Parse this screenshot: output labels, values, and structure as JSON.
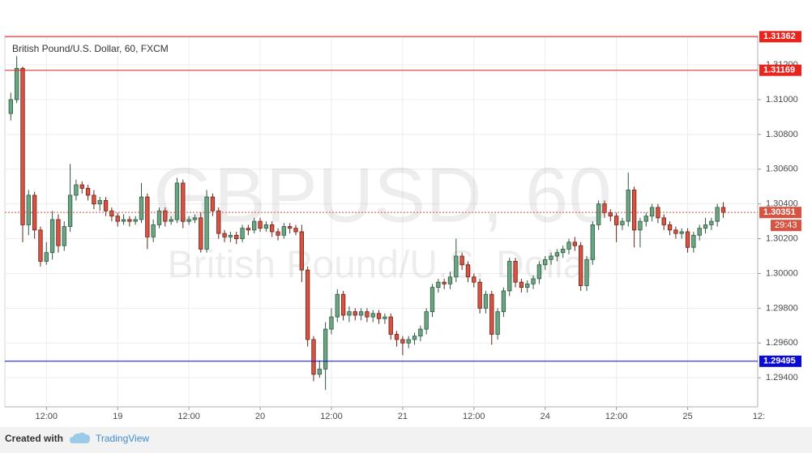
{
  "chart_data": {
    "type": "candlestick",
    "title": "British Pound/U.S. Dollar, 60, FXCM",
    "watermark": "GBPUSD, 60",
    "watermark_subtitle": "British Pound/U.S. Dollar",
    "open": [
      1.3092,
      1.31,
      1.3118,
      1.3028,
      1.3045,
      1.3025,
      1.3007,
      1.3012,
      1.3031,
      1.3016,
      1.3027,
      1.3045,
      1.3051,
      1.3049,
      1.3045,
      1.304,
      1.3042,
      1.3036,
      1.3033,
      1.303,
      1.3031,
      1.303,
      1.3031,
      1.3044,
      1.3021,
      1.3028,
      1.3036,
      1.303,
      1.3031,
      1.3052,
      1.303,
      1.3031,
      1.3032,
      1.3014,
      1.3044,
      1.3036,
      1.3023,
      1.3021,
      1.3022,
      1.302,
      1.3026,
      1.3025,
      1.303,
      1.3026,
      1.3028,
      1.3024,
      1.3022,
      1.3027,
      1.3026,
      1.3024,
      1.3002,
      1.2962,
      1.2942,
      1.2945,
      1.2968,
      1.2975,
      1.2988,
      1.2976,
      1.2978,
      1.2976,
      1.2978,
      1.2975,
      1.2977,
      1.2974,
      1.2975,
      1.2965,
      1.2962,
      1.296,
      1.2962,
      1.2964,
      1.2968,
      1.2978,
      1.2992,
      1.2995,
      1.2994,
      1.2998,
      1.301,
      1.3005,
      1.2998,
      1.2995,
      1.298,
      1.2988,
      1.2965,
      1.2978,
      1.299,
      1.3007,
      1.2995,
      1.2992,
      1.2994,
      1.2997,
      1.3005,
      1.3008,
      1.301,
      1.3012,
      1.3014,
      1.3018,
      1.3016,
      1.2993,
      1.3008,
      1.3028,
      1.304,
      1.3035,
      1.3033,
      1.3028,
      1.303,
      1.3048,
      1.3025,
      1.303,
      1.3033,
      1.3038,
      1.3032,
      1.3028,
      1.3025,
      1.3023,
      1.3024,
      1.3015,
      1.3022,
      1.3026,
      1.3028,
      1.303,
      1.3038
    ],
    "high": [
      1.3104,
      1.3125,
      1.3119,
      1.3048,
      1.3047,
      1.3027,
      1.3018,
      1.3036,
      1.3034,
      1.303,
      1.3063,
      1.3054,
      1.3053,
      1.3051,
      1.3048,
      1.3044,
      1.3044,
      1.3038,
      1.3035,
      1.3034,
      1.3033,
      1.3033,
      1.3052,
      1.3046,
      1.3031,
      1.3038,
      1.3038,
      1.3033,
      1.3055,
      1.3054,
      1.3033,
      1.3034,
      1.3035,
      1.3048,
      1.3046,
      1.3038,
      1.3025,
      1.3024,
      1.3024,
      1.3028,
      1.3028,
      1.3032,
      1.3032,
      1.303,
      1.303,
      1.3026,
      1.3029,
      1.3029,
      1.3028,
      1.3028,
      1.3004,
      1.2964,
      1.295,
      1.2972,
      1.298,
      1.2991,
      1.299,
      1.2981,
      1.298,
      1.298,
      1.298,
      1.2979,
      1.2979,
      1.2977,
      1.2977,
      1.2967,
      1.2964,
      1.2964,
      1.2966,
      1.297,
      1.298,
      1.2994,
      1.2997,
      1.2997,
      1.3001,
      1.302,
      1.3012,
      1.3007,
      1.3,
      1.2997,
      1.299,
      1.299,
      1.298,
      1.2992,
      1.3009,
      1.3009,
      1.2997,
      1.2996,
      1.2999,
      1.3007,
      1.301,
      1.3012,
      1.3014,
      1.3016,
      1.302,
      1.3021,
      1.3018,
      1.301,
      1.303,
      1.3042,
      1.3042,
      1.3037,
      1.3035,
      1.3032,
      1.3058,
      1.305,
      1.3032,
      1.3035,
      1.304,
      1.304,
      1.3034,
      1.303,
      1.3027,
      1.3026,
      1.3026,
      1.3024,
      1.3028,
      1.3032,
      1.3032,
      1.304,
      1.3041
    ],
    "low": [
      1.3088,
      1.3098,
      1.3018,
      1.3022,
      1.302,
      1.3004,
      1.3005,
      1.3008,
      1.3012,
      1.3013,
      1.3024,
      1.3042,
      1.3046,
      1.3042,
      1.3037,
      1.3036,
      1.3033,
      1.303,
      1.3027,
      1.3028,
      1.3027,
      1.3028,
      1.3029,
      1.3014,
      1.3018,
      1.3026,
      1.3027,
      1.3028,
      1.3029,
      1.3026,
      1.3028,
      1.3029,
      1.3012,
      1.3012,
      1.3033,
      1.302,
      1.3018,
      1.3018,
      1.3017,
      1.3018,
      1.3022,
      1.3023,
      1.3024,
      1.3024,
      1.3021,
      1.3019,
      1.302,
      1.3023,
      1.3022,
      1.2995,
      1.2958,
      1.2938,
      1.294,
      1.2933,
      1.2965,
      1.2972,
      1.2973,
      1.2972,
      1.2973,
      1.2973,
      1.2972,
      1.2972,
      1.2971,
      1.2971,
      1.2962,
      1.2958,
      1.2953,
      1.2957,
      1.2959,
      1.2961,
      1.2965,
      1.2975,
      1.2989,
      1.2991,
      1.2991,
      1.2995,
      1.3002,
      1.2995,
      1.2992,
      1.2977,
      1.2977,
      1.2959,
      1.2962,
      1.2975,
      1.2987,
      1.2992,
      1.2989,
      1.2989,
      1.2991,
      1.2994,
      1.3002,
      1.3005,
      1.3007,
      1.3009,
      1.3011,
      1.3013,
      1.299,
      1.299,
      1.3005,
      1.3025,
      1.3032,
      1.303,
      1.3018,
      1.3025,
      1.3027,
      1.3015,
      1.3015,
      1.3027,
      1.303,
      1.3029,
      1.3025,
      1.3022,
      1.302,
      1.302,
      1.3012,
      1.3012,
      1.3019,
      1.3023,
      1.3025,
      1.3027,
      1.3032
    ],
    "close": [
      1.31,
      1.3118,
      1.3028,
      1.3045,
      1.3025,
      1.3007,
      1.3012,
      1.3031,
      1.3016,
      1.3027,
      1.3045,
      1.3051,
      1.3049,
      1.3045,
      1.304,
      1.3042,
      1.3036,
      1.3033,
      1.303,
      1.3031,
      1.303,
      1.3031,
      1.3044,
      1.3021,
      1.3028,
      1.3036,
      1.303,
      1.3031,
      1.3052,
      1.303,
      1.3031,
      1.3032,
      1.3014,
      1.3044,
      1.3036,
      1.3023,
      1.3021,
      1.3022,
      1.302,
      1.3026,
      1.3025,
      1.303,
      1.3026,
      1.3028,
      1.3024,
      1.3022,
      1.3027,
      1.3026,
      1.3024,
      1.3002,
      1.2962,
      1.2942,
      1.2945,
      1.2968,
      1.2975,
      1.2988,
      1.2976,
      1.2978,
      1.2976,
      1.2978,
      1.2975,
      1.2977,
      1.2974,
      1.2975,
      1.2965,
      1.2962,
      1.296,
      1.2962,
      1.2964,
      1.2968,
      1.2978,
      1.2992,
      1.2995,
      1.2994,
      1.2998,
      1.301,
      1.3005,
      1.2998,
      1.2995,
      1.298,
      1.2988,
      1.2965,
      1.2978,
      1.299,
      1.3007,
      1.2995,
      1.2992,
      1.2994,
      1.2997,
      1.3005,
      1.3008,
      1.301,
      1.3012,
      1.3014,
      1.3018,
      1.3016,
      1.2993,
      1.3008,
      1.3028,
      1.304,
      1.3035,
      1.3033,
      1.3028,
      1.303,
      1.3048,
      1.3025,
      1.303,
      1.3033,
      1.3038,
      1.3032,
      1.3028,
      1.3025,
      1.3023,
      1.3024,
      1.3015,
      1.3022,
      1.3026,
      1.3028,
      1.303,
      1.3038,
      1.30351
    ],
    "up_color": "#6ba583",
    "down_color": "#d75442",
    "xlim": [
      -1,
      125.8
    ],
    "xticks": [
      {
        "value": 6,
        "label": "12:00"
      },
      {
        "value": 18,
        "label": "19"
      },
      {
        "value": 30,
        "label": "12:00"
      },
      {
        "value": 42,
        "label": "20"
      },
      {
        "value": 54,
        "label": "12:00"
      },
      {
        "value": 66,
        "label": "21"
      },
      {
        "value": 78,
        "label": "12:00"
      },
      {
        "value": 90,
        "label": "24"
      },
      {
        "value": 102,
        "label": "12:00"
      },
      {
        "value": 114,
        "label": "25"
      },
      {
        "value": 126,
        "label": "12:"
      }
    ],
    "ylim": [
      1.29233,
      1.31368
    ],
    "yticks": [
      {
        "value": 1.294,
        "label": "1.29400"
      },
      {
        "value": 1.296,
        "label": "1.29600"
      },
      {
        "value": 1.298,
        "label": "1.29800"
      },
      {
        "value": 1.3,
        "label": "1.30000"
      },
      {
        "value": 1.302,
        "label": "1.30200"
      },
      {
        "value": 1.304,
        "label": "1.30400"
      },
      {
        "value": 1.306,
        "label": "1.30600"
      },
      {
        "value": 1.308,
        "label": "1.30800"
      },
      {
        "value": 1.31,
        "label": "1.31000"
      },
      {
        "value": 1.312,
        "label": "1.31200"
      }
    ],
    "levels": [
      {
        "value": 1.31362,
        "color": "#e8241f"
      },
      {
        "value": 1.31169,
        "color": "#e8241f"
      },
      {
        "value": 1.29495,
        "color": "#0a0ad6"
      }
    ],
    "countdown": "29:43",
    "grid": true
  },
  "footer": {
    "created_with": "Created with",
    "brand": "TradingView"
  }
}
